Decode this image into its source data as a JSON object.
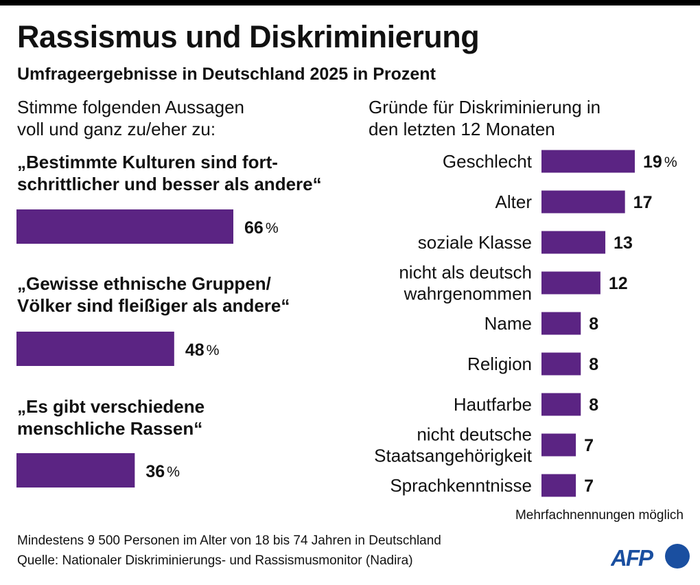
{
  "header": {
    "title": "Rassismus und Diskriminierung",
    "subtitle": "Umfrageergebnisse in Deutschland 2025 in Prozent"
  },
  "colors": {
    "bar": "#5b2483",
    "text": "#111111",
    "afp_blue": "#1a4fa0",
    "top_rule": "#000000"
  },
  "chart_data": [
    {
      "type": "bar",
      "orientation": "horizontal",
      "title_lines": [
        "Stimme folgenden Aussagen",
        "voll und ganz zu/eher zu:"
      ],
      "categories": [
        [
          "„Bestimmte Kulturen sind fort-",
          "schrittlicher und besser als andere“"
        ],
        [
          "„Gewisse ethnische Gruppen/",
          "Völker sind fleißiger als andere“"
        ],
        [
          "„Es gibt verschiedene",
          "menschliche Rassen“"
        ]
      ],
      "values": [
        66,
        48,
        36
      ],
      "value_labels": [
        "66 %",
        "48 %",
        "36 %"
      ],
      "unit": "%",
      "xlim": [
        0,
        100
      ],
      "grid": false,
      "legend": "none"
    },
    {
      "type": "bar",
      "orientation": "horizontal",
      "title_lines": [
        "Gründe für Diskriminierung in",
        "den letzten 12 Monaten"
      ],
      "categories": [
        [
          "Geschlecht"
        ],
        [
          "Alter"
        ],
        [
          "soziale Klasse"
        ],
        [
          "nicht als deutsch",
          "wahrgenommen"
        ],
        [
          "Name"
        ],
        [
          "Religion"
        ],
        [
          "Hautfarbe"
        ],
        [
          "nicht deutsche",
          "Staatsangehörigkeit"
        ],
        [
          "Sprachkenntnisse"
        ]
      ],
      "values": [
        19,
        17,
        13,
        12,
        8,
        8,
        8,
        7,
        7
      ],
      "value_labels": [
        "19 %",
        "17",
        "13",
        "12",
        "8",
        "8",
        "8",
        "7",
        "7"
      ],
      "unit": "%",
      "xlim": [
        0,
        20
      ],
      "grid": false,
      "legend": "none",
      "note": "Mehrfachnennungen möglich"
    }
  ],
  "footer": {
    "note": "Mehrfachnennungen möglich",
    "source_lines": [
      "Mindestens 9 500 Personen im Alter von 18 bis 74 Jahren in Deutschland",
      "Quelle: Nationaler Diskriminierungs- und Rassismusmonitor (Nadira)"
    ],
    "logo_text": "AFP"
  }
}
